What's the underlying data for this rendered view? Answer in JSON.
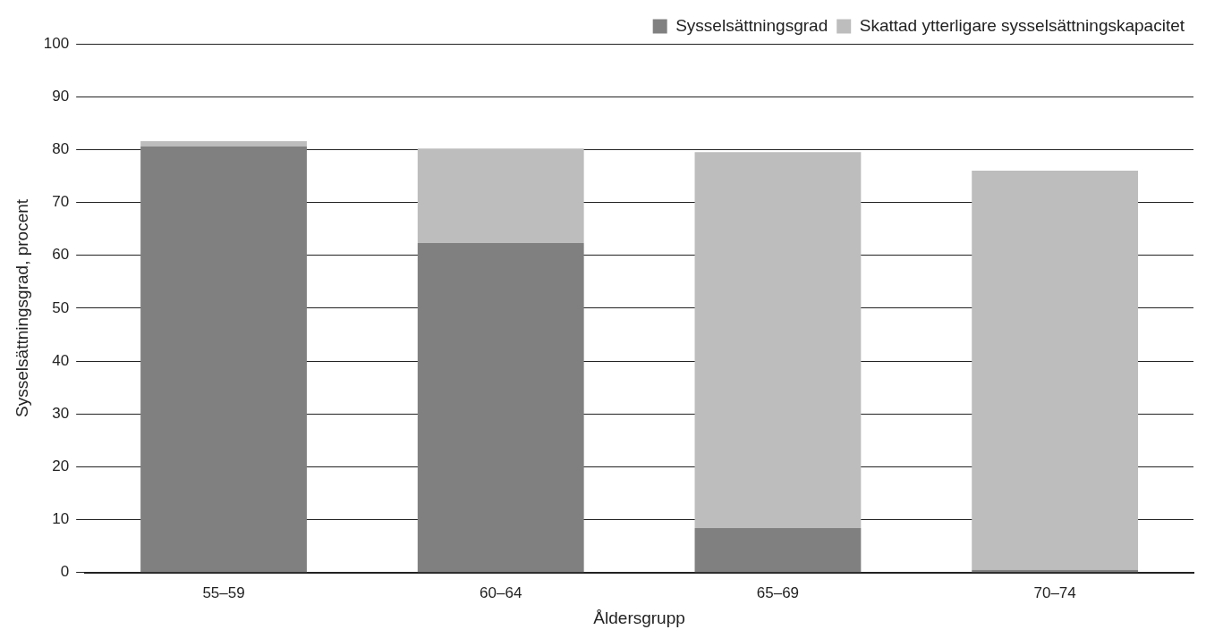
{
  "chart_data": {
    "type": "bar",
    "stacked": true,
    "xlabel": "Åldersgrupp",
    "ylabel": "Sysselsättningsgrad, procent",
    "categories": [
      "55–59",
      "60–64",
      "65–69",
      "70–74"
    ],
    "series": [
      {
        "name": "Sysselsättningsgrad",
        "color": "#808080",
        "values": [
          80.6,
          62.3,
          8.4,
          0.5
        ]
      },
      {
        "name": "Skattad ytterligare sysselsättningskapacitet",
        "color": "#bdbdbd",
        "values": [
          1.0,
          17.9,
          71.1,
          75.5
        ]
      }
    ],
    "ylim": [
      0,
      100
    ],
    "yticks": [
      0,
      10,
      20,
      30,
      40,
      50,
      60,
      70,
      80,
      90,
      100
    ],
    "grid": "y",
    "legend": "top right"
  }
}
